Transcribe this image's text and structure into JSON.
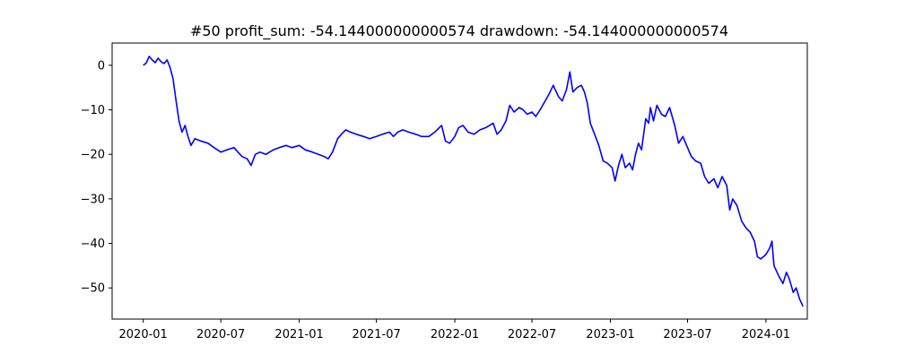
{
  "chart_data": {
    "type": "line",
    "title": "#50   profit_sum: -54.144000000000574 drawdown: -54.144000000000574",
    "xlabel": "",
    "ylabel": "",
    "x_ticks": [
      "2020-01",
      "2020-07",
      "2021-01",
      "2021-07",
      "2022-01",
      "2022-07",
      "2023-01",
      "2023-07",
      "2024-01"
    ],
    "y_ticks": [
      0,
      -10,
      -20,
      -30,
      -40,
      -50
    ],
    "xlim": [
      "2019-10-20",
      "2024-04-07"
    ],
    "ylim": [
      -57,
      5
    ],
    "grid": false,
    "legend": "none",
    "series": [
      {
        "color": "#0000ff",
        "points": [
          [
            "2020-01-01",
            0.0
          ],
          [
            "2020-01-08",
            0.5
          ],
          [
            "2020-01-15",
            2.0
          ],
          [
            "2020-01-22",
            1.2
          ],
          [
            "2020-01-29",
            0.6
          ],
          [
            "2020-02-05",
            1.6
          ],
          [
            "2020-02-12",
            0.8
          ],
          [
            "2020-02-19",
            0.4
          ],
          [
            "2020-02-26",
            1.2
          ],
          [
            "2020-03-04",
            -0.5
          ],
          [
            "2020-03-11",
            -3.0
          ],
          [
            "2020-03-18",
            -8.0
          ],
          [
            "2020-03-25",
            -12.5
          ],
          [
            "2020-04-01",
            -15.0
          ],
          [
            "2020-04-08",
            -13.5
          ],
          [
            "2020-04-15",
            -16.0
          ],
          [
            "2020-04-22",
            -18.0
          ],
          [
            "2020-05-01",
            -16.5
          ],
          [
            "2020-05-15",
            -17.0
          ],
          [
            "2020-06-01",
            -17.5
          ],
          [
            "2020-06-15",
            -18.5
          ],
          [
            "2020-07-01",
            -19.5
          ],
          [
            "2020-07-15",
            -19.0
          ],
          [
            "2020-08-01",
            -18.5
          ],
          [
            "2020-08-10",
            -19.5
          ],
          [
            "2020-08-20",
            -20.5
          ],
          [
            "2020-09-01",
            -21.0
          ],
          [
            "2020-09-10",
            -22.5
          ],
          [
            "2020-09-20",
            -20.0
          ],
          [
            "2020-10-01",
            -19.5
          ],
          [
            "2020-10-15",
            -20.0
          ],
          [
            "2020-11-01",
            -19.0
          ],
          [
            "2020-11-15",
            -18.5
          ],
          [
            "2020-12-01",
            -18.0
          ],
          [
            "2020-12-15",
            -18.5
          ],
          [
            "2021-01-01",
            -18.0
          ],
          [
            "2021-01-15",
            -19.0
          ],
          [
            "2021-02-01",
            -19.5
          ],
          [
            "2021-02-15",
            -20.0
          ],
          [
            "2021-03-01",
            -20.5
          ],
          [
            "2021-03-10",
            -21.0
          ],
          [
            "2021-03-20",
            -19.5
          ],
          [
            "2021-04-01",
            -16.5
          ],
          [
            "2021-04-10",
            -15.5
          ],
          [
            "2021-04-20",
            -14.5
          ],
          [
            "2021-05-01",
            -15.0
          ],
          [
            "2021-05-15",
            -15.5
          ],
          [
            "2021-06-01",
            -16.0
          ],
          [
            "2021-06-15",
            -16.5
          ],
          [
            "2021-07-01",
            -16.0
          ],
          [
            "2021-07-15",
            -15.5
          ],
          [
            "2021-08-01",
            -15.0
          ],
          [
            "2021-08-10",
            -16.0
          ],
          [
            "2021-08-20",
            -15.0
          ],
          [
            "2021-09-01",
            -14.5
          ],
          [
            "2021-09-15",
            -15.0
          ],
          [
            "2021-10-01",
            -15.5
          ],
          [
            "2021-10-15",
            -16.0
          ],
          [
            "2021-11-01",
            -16.0
          ],
          [
            "2021-11-15",
            -15.0
          ],
          [
            "2021-12-01",
            -13.5
          ],
          [
            "2021-12-10",
            -17.0
          ],
          [
            "2021-12-20",
            -17.5
          ],
          [
            "2022-01-01",
            -16.0
          ],
          [
            "2022-01-10",
            -14.0
          ],
          [
            "2022-01-20",
            -13.5
          ],
          [
            "2022-02-01",
            -15.0
          ],
          [
            "2022-02-15",
            -15.5
          ],
          [
            "2022-03-01",
            -14.5
          ],
          [
            "2022-03-15",
            -14.0
          ],
          [
            "2022-04-01",
            -13.0
          ],
          [
            "2022-04-10",
            -15.5
          ],
          [
            "2022-04-20",
            -14.5
          ],
          [
            "2022-05-01",
            -12.5
          ],
          [
            "2022-05-10",
            -9.0
          ],
          [
            "2022-05-20",
            -10.5
          ],
          [
            "2022-06-01",
            -9.5
          ],
          [
            "2022-06-10",
            -10.0
          ],
          [
            "2022-06-20",
            -11.0
          ],
          [
            "2022-07-01",
            -10.5
          ],
          [
            "2022-07-10",
            -11.5
          ],
          [
            "2022-07-20",
            -10.0
          ],
          [
            "2022-08-01",
            -8.0
          ],
          [
            "2022-08-10",
            -6.5
          ],
          [
            "2022-08-20",
            -4.5
          ],
          [
            "2022-09-01",
            -7.0
          ],
          [
            "2022-09-10",
            -8.0
          ],
          [
            "2022-09-20",
            -5.5
          ],
          [
            "2022-09-28",
            -1.5
          ],
          [
            "2022-10-05",
            -6.0
          ],
          [
            "2022-10-15",
            -5.0
          ],
          [
            "2022-10-25",
            -4.5
          ],
          [
            "2022-11-01",
            -6.0
          ],
          [
            "2022-11-08",
            -8.5
          ],
          [
            "2022-11-15",
            -13.0
          ],
          [
            "2022-11-25",
            -15.5
          ],
          [
            "2022-12-05",
            -18.0
          ],
          [
            "2022-12-15",
            -21.5
          ],
          [
            "2022-12-25",
            -22.0
          ],
          [
            "2023-01-05",
            -23.0
          ],
          [
            "2023-01-12",
            -26.0
          ],
          [
            "2023-01-20",
            -22.5
          ],
          [
            "2023-01-28",
            -20.0
          ],
          [
            "2023-02-05",
            -23.0
          ],
          [
            "2023-02-15",
            -22.0
          ],
          [
            "2023-02-22",
            -23.5
          ],
          [
            "2023-03-01",
            -20.0
          ],
          [
            "2023-03-08",
            -17.5
          ],
          [
            "2023-03-15",
            -19.0
          ],
          [
            "2023-03-25",
            -12.0
          ],
          [
            "2023-04-01",
            -13.0
          ],
          [
            "2023-04-05",
            -9.5
          ],
          [
            "2023-04-12",
            -12.5
          ],
          [
            "2023-04-20",
            -9.0
          ],
          [
            "2023-05-01",
            -11.0
          ],
          [
            "2023-05-10",
            -11.5
          ],
          [
            "2023-05-20",
            -9.5
          ],
          [
            "2023-06-01",
            -13.5
          ],
          [
            "2023-06-10",
            -17.5
          ],
          [
            "2023-06-20",
            -16.0
          ],
          [
            "2023-07-01",
            -18.5
          ],
          [
            "2023-07-10",
            -20.5
          ],
          [
            "2023-07-20",
            -21.5
          ],
          [
            "2023-08-01",
            -22.0
          ],
          [
            "2023-08-10",
            -25.0
          ],
          [
            "2023-08-20",
            -26.5
          ],
          [
            "2023-09-01",
            -25.5
          ],
          [
            "2023-09-10",
            -27.5
          ],
          [
            "2023-09-20",
            -25.0
          ],
          [
            "2023-10-01",
            -27.0
          ],
          [
            "2023-10-08",
            -32.5
          ],
          [
            "2023-10-15",
            -30.0
          ],
          [
            "2023-10-25",
            -31.5
          ],
          [
            "2023-11-05",
            -35.0
          ],
          [
            "2023-11-15",
            -36.5
          ],
          [
            "2023-11-25",
            -37.5
          ],
          [
            "2023-12-05",
            -39.5
          ],
          [
            "2023-12-12",
            -43.0
          ],
          [
            "2023-12-20",
            -43.5
          ],
          [
            "2024-01-01",
            -42.5
          ],
          [
            "2024-01-10",
            -41.0
          ],
          [
            "2024-01-15",
            -39.5
          ],
          [
            "2024-01-20",
            -45.0
          ],
          [
            "2024-02-01",
            -47.5
          ],
          [
            "2024-02-10",
            -49.0
          ],
          [
            "2024-02-18",
            -46.5
          ],
          [
            "2024-02-25",
            -48.0
          ],
          [
            "2024-03-05",
            -51.0
          ],
          [
            "2024-03-12",
            -50.0
          ],
          [
            "2024-03-20",
            -52.5
          ],
          [
            "2024-03-28",
            -54.144
          ]
        ]
      }
    ]
  }
}
